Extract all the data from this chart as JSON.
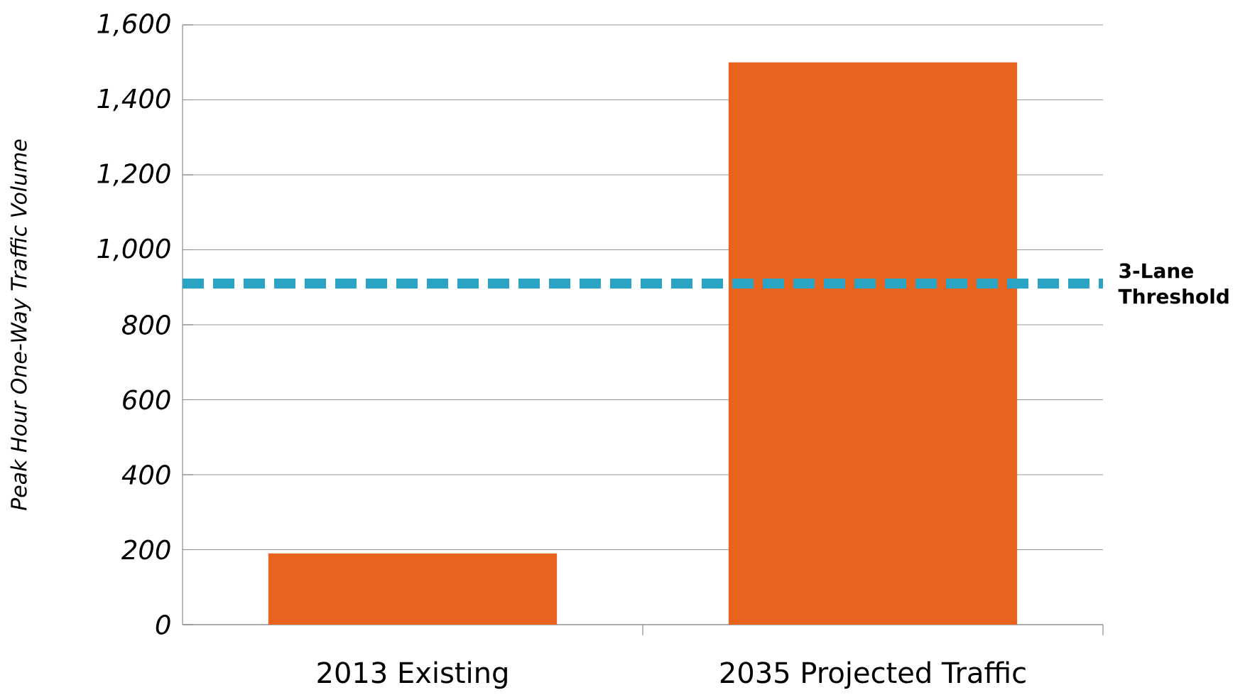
{
  "chart_data": {
    "type": "bar",
    "ylabel": "Peak Hour One-Way Traffic Volume",
    "categories": [
      "2013 Existing",
      "2035 Projected Traffic"
    ],
    "values": [
      190,
      1500
    ],
    "color": "#e8641e",
    "ylim": [
      0,
      1600
    ],
    "yticks": [
      0,
      200,
      400,
      600,
      {
        "value": 1000,
        "label": "1,000"
      },
      800,
      {
        "value": 1200,
        "label": "1,200"
      },
      {
        "value": 1400,
        "label": "1,400"
      },
      {
        "value": 1600,
        "label": "1,600"
      }
    ],
    "grid": "y",
    "ref_lines": [
      {
        "axis": "y",
        "value": 910,
        "label": "3-Lane Threshold",
        "color": "#2aa3c4",
        "line_style": "dashed"
      }
    ]
  }
}
